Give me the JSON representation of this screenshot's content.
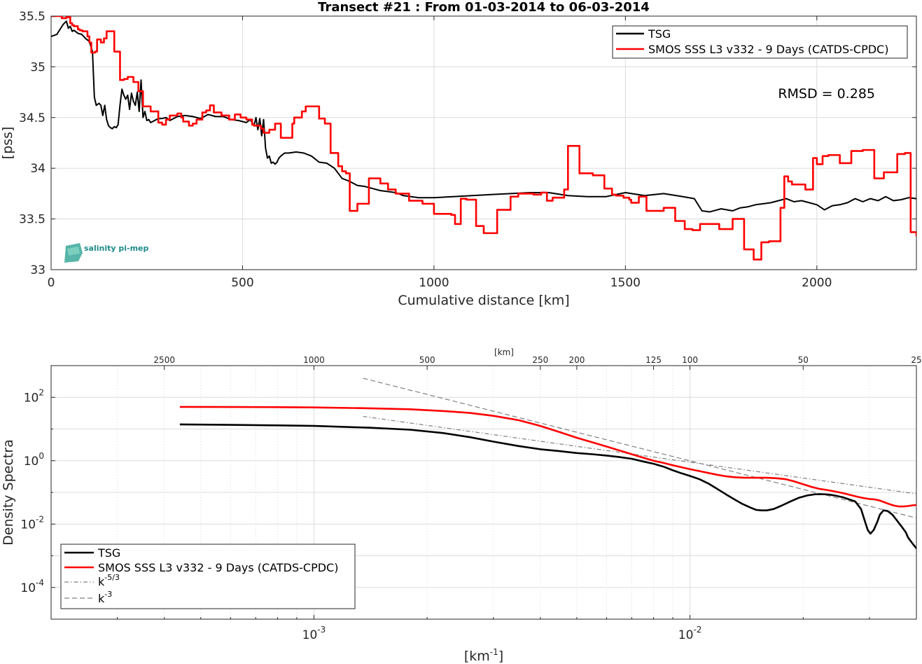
{
  "chart_data": [
    {
      "type": "line",
      "title": "Transect #21 : From 01-03-2014 to 06-03-2014",
      "xlabel": "Cumulative distance [km]",
      "ylabel": "[pss]",
      "xlim": [
        0,
        2260
      ],
      "ylim": [
        33,
        35.5
      ],
      "xticks": [
        "0",
        "500",
        "1000",
        "1500",
        "2000"
      ],
      "yticks": [
        "33",
        "33.5",
        "34",
        "34.5",
        "35",
        "35.5"
      ],
      "grid": true,
      "legend_position": "top-right",
      "annotation": "RMSD = 0.285",
      "logo": "salinity pi-mep",
      "series": [
        {
          "name": "TSG",
          "color": "#000000",
          "style": "line",
          "x": [
            0,
            15,
            25,
            32,
            40,
            45,
            50,
            55,
            60,
            70,
            80,
            90,
            100,
            108,
            113,
            118,
            125,
            130,
            135,
            140,
            145,
            150,
            155,
            160,
            165,
            170,
            175,
            180,
            185,
            190,
            195,
            200,
            205,
            210,
            215,
            220,
            225,
            230,
            235,
            240,
            245,
            250,
            255,
            260,
            265,
            270,
            280,
            290,
            300,
            310,
            330,
            350,
            370,
            390,
            410,
            430,
            450,
            470,
            490,
            510,
            520,
            530,
            535,
            540,
            545,
            550,
            555,
            560,
            565,
            570,
            575,
            580,
            585,
            590,
            595,
            600,
            610,
            620,
            640,
            660,
            680,
            700,
            720,
            740,
            760,
            780,
            800,
            820,
            840,
            860,
            880,
            900,
            920,
            940,
            960,
            980,
            1000,
            1050,
            1100,
            1150,
            1200,
            1250,
            1300,
            1350,
            1400,
            1450,
            1500,
            1550,
            1600,
            1650,
            1680,
            1700,
            1720,
            1750,
            1780,
            1800,
            1820,
            1840,
            1860,
            1880,
            1900,
            1920,
            1940,
            1960,
            1980,
            2000,
            2020,
            2040,
            2060,
            2080,
            2100,
            2120,
            2140,
            2160,
            2180,
            2200,
            2220,
            2240,
            2260
          ],
          "y": [
            35.3,
            35.32,
            35.38,
            35.42,
            35.45,
            35.38,
            35.4,
            35.35,
            35.36,
            35.33,
            35.32,
            35.28,
            35.25,
            35.15,
            34.7,
            34.62,
            34.64,
            34.62,
            34.52,
            34.62,
            34.48,
            34.42,
            34.4,
            34.39,
            34.41,
            34.4,
            34.43,
            34.62,
            34.78,
            34.72,
            34.68,
            34.72,
            34.58,
            34.74,
            34.66,
            34.62,
            34.75,
            34.56,
            34.87,
            34.5,
            34.56,
            34.47,
            34.48,
            34.45,
            34.46,
            34.47,
            34.49,
            34.49,
            34.5,
            34.47,
            34.51,
            34.52,
            34.51,
            34.49,
            34.53,
            34.51,
            34.51,
            34.48,
            34.47,
            34.45,
            34.48,
            34.42,
            34.5,
            34.38,
            34.49,
            34.32,
            34.48,
            34.2,
            34.1,
            34.12,
            34.05,
            34.06,
            34.04,
            34.06,
            34.1,
            34.12,
            34.15,
            34.15,
            34.16,
            34.15,
            34.12,
            34.06,
            34.05,
            34.0,
            33.9,
            33.87,
            33.83,
            33.82,
            33.8,
            33.78,
            33.77,
            33.76,
            33.73,
            33.72,
            33.71,
            33.71,
            33.71,
            33.72,
            33.73,
            33.74,
            33.75,
            33.76,
            33.76,
            33.73,
            33.72,
            33.72,
            33.76,
            33.73,
            33.75,
            33.72,
            33.7,
            33.58,
            33.57,
            33.6,
            33.58,
            33.61,
            33.62,
            33.64,
            33.65,
            33.66,
            33.68,
            33.7,
            33.67,
            33.68,
            33.66,
            33.64,
            33.59,
            33.63,
            33.64,
            33.66,
            33.7,
            33.67,
            33.7,
            33.68,
            33.72,
            33.68,
            33.69,
            33.71,
            33.7
          ]
        },
        {
          "name": "SMOS SSS L3 v332 - 9 Days (CATDS-CPDC)",
          "color": "#ff0000",
          "style": "step",
          "x": [
            0,
            28,
            40,
            45,
            50,
            55,
            60,
            70,
            75,
            82,
            95,
            100,
            105,
            115,
            120,
            130,
            138,
            145,
            165,
            180,
            190,
            200,
            215,
            228,
            240,
            260,
            280,
            290,
            300,
            310,
            330,
            340,
            345,
            360,
            370,
            380,
            395,
            405,
            415,
            425,
            445,
            465,
            480,
            495,
            510,
            525,
            530,
            548,
            555,
            570,
            585,
            600,
            625,
            630,
            635,
            655,
            665,
            685,
            700,
            715,
            730,
            750,
            760,
            770,
            780,
            800,
            830,
            860,
            880,
            900,
            935,
            970,
            1000,
            1045,
            1055,
            1070,
            1085,
            1110,
            1130,
            1165,
            1200,
            1220,
            1260,
            1280,
            1295,
            1310,
            1340,
            1350,
            1380,
            1415,
            1445,
            1465,
            1475,
            1495,
            1510,
            1515,
            1535,
            1555,
            1600,
            1630,
            1655,
            1675,
            1695,
            1725,
            1745,
            1780,
            1810,
            1835,
            1855,
            1875,
            1905,
            1915,
            1925,
            1935,
            1970,
            1990,
            2000,
            2015,
            2030,
            2060,
            2090,
            2120,
            2150,
            2175,
            2210,
            2230,
            2245,
            2260
          ],
          "y": [
            35.5,
            35.48,
            35.49,
            35.49,
            35.43,
            35.41,
            35.4,
            35.37,
            35.36,
            35.35,
            35.3,
            35.24,
            35.14,
            35.15,
            35.27,
            35.24,
            35.28,
            35.35,
            35.15,
            34.87,
            34.88,
            34.9,
            34.85,
            34.76,
            34.61,
            34.56,
            34.45,
            34.43,
            34.48,
            34.52,
            34.54,
            34.5,
            34.46,
            34.42,
            34.44,
            34.48,
            34.55,
            34.57,
            34.62,
            34.55,
            34.52,
            34.48,
            34.53,
            34.5,
            34.48,
            34.43,
            34.42,
            34.39,
            34.35,
            34.38,
            34.44,
            34.3,
            34.3,
            34.44,
            34.5,
            34.56,
            34.61,
            34.61,
            34.49,
            34.44,
            34.15,
            34.02,
            33.97,
            33.95,
            33.58,
            33.65,
            33.9,
            33.85,
            33.79,
            33.75,
            33.68,
            33.65,
            33.55,
            33.54,
            33.45,
            33.7,
            33.69,
            33.43,
            33.36,
            33.59,
            33.72,
            33.75,
            33.74,
            33.76,
            33.68,
            33.71,
            33.79,
            34.22,
            33.95,
            33.93,
            33.8,
            33.74,
            33.73,
            33.71,
            33.69,
            33.66,
            33.72,
            33.58,
            33.61,
            33.48,
            33.4,
            33.39,
            33.45,
            33.45,
            33.4,
            33.5,
            33.2,
            33.1,
            33.27,
            33.28,
            33.61,
            33.92,
            33.87,
            33.84,
            33.79,
            34.1,
            34.04,
            34.12,
            34.13,
            34.05,
            34.17,
            34.18,
            33.9,
            33.96,
            34.14,
            34.15,
            33.37,
            33.33
          ]
        }
      ]
    },
    {
      "type": "line",
      "xlabel": "[km-1]",
      "ylabel": "Density Spectra",
      "top_axis_label": "[km]",
      "x_scale": "log",
      "y_scale": "log",
      "xlim": [
        0.0002,
        0.04
      ],
      "ylim": [
        1e-05,
        1000
      ],
      "xticks_bottom": [
        "10-3",
        "10-2"
      ],
      "xticks_top_km": [
        2500,
        1000,
        500,
        250,
        200,
        125,
        100,
        50,
        25
      ],
      "yticks": [
        "10-4",
        "10-2",
        "100",
        "102"
      ],
      "grid": true,
      "legend_position": "bottom-left",
      "series": [
        {
          "name": "TSG",
          "color": "#000000",
          "style": "solid",
          "x": [
            0.00044,
            0.0006,
            0.0008,
            0.001,
            0.0014,
            0.0018,
            0.0022,
            0.0026,
            0.003,
            0.0035,
            0.004,
            0.0045,
            0.005,
            0.0055,
            0.006,
            0.0065,
            0.007,
            0.0075,
            0.008,
            0.0085,
            0.009,
            0.0095,
            0.01,
            0.0106,
            0.0112,
            0.0118,
            0.0125,
            0.0132,
            0.0138,
            0.0145,
            0.015,
            0.0155,
            0.016,
            0.0167,
            0.0175,
            0.0185,
            0.0195,
            0.0205,
            0.0215,
            0.0225,
            0.0235,
            0.0245,
            0.0255,
            0.0265,
            0.0275,
            0.0285,
            0.0292,
            0.0297,
            0.0302,
            0.0308,
            0.0315,
            0.032,
            0.0327,
            0.0335,
            0.0345,
            0.0355,
            0.0365,
            0.0375,
            0.038,
            0.039,
            0.04
          ],
          "y": [
            14,
            13.5,
            13,
            12.5,
            11,
            9.5,
            7.5,
            5.5,
            4,
            2.9,
            2.3,
            2,
            1.75,
            1.6,
            1.45,
            1.3,
            1.15,
            0.95,
            0.8,
            0.65,
            0.5,
            0.4,
            0.33,
            0.26,
            0.19,
            0.13,
            0.085,
            0.058,
            0.043,
            0.033,
            0.028,
            0.027,
            0.027,
            0.03,
            0.038,
            0.052,
            0.068,
            0.08,
            0.087,
            0.088,
            0.085,
            0.078,
            0.07,
            0.06,
            0.052,
            0.03,
            0.012,
            0.0065,
            0.005,
            0.0065,
            0.012,
            0.02,
            0.027,
            0.026,
            0.02,
            0.013,
            0.0085,
            0.0055,
            0.0038,
            0.0025,
            0.0017
          ]
        },
        {
          "name": "SMOS SSS L3 v332 - 9 Days (CATDS-CPDC)",
          "color": "#ff0000",
          "style": "solid",
          "x": [
            0.00044,
            0.0006,
            0.0008,
            0.001,
            0.0014,
            0.0018,
            0.0022,
            0.0026,
            0.003,
            0.0035,
            0.004,
            0.0045,
            0.005,
            0.0055,
            0.006,
            0.0065,
            0.007,
            0.0075,
            0.008,
            0.0085,
            0.009,
            0.0095,
            0.01,
            0.0106,
            0.0112,
            0.0118,
            0.0125,
            0.0132,
            0.014,
            0.015,
            0.016,
            0.017,
            0.018,
            0.019,
            0.02,
            0.021,
            0.022,
            0.023,
            0.024,
            0.025,
            0.026,
            0.027,
            0.028,
            0.029,
            0.03,
            0.031,
            0.032,
            0.033,
            0.034,
            0.035,
            0.036,
            0.037,
            0.038,
            0.039,
            0.04
          ],
          "y": [
            50,
            49.5,
            49,
            48,
            45,
            42,
            37,
            32,
            26,
            19,
            12.5,
            8,
            5.3,
            3.8,
            2.8,
            2.1,
            1.6,
            1.25,
            1,
            0.85,
            0.72,
            0.62,
            0.54,
            0.47,
            0.41,
            0.36,
            0.32,
            0.3,
            0.29,
            0.29,
            0.29,
            0.28,
            0.26,
            0.22,
            0.18,
            0.15,
            0.13,
            0.12,
            0.11,
            0.1,
            0.09,
            0.08,
            0.072,
            0.066,
            0.062,
            0.06,
            0.055,
            0.048,
            0.042,
            0.038,
            0.036,
            0.036,
            0.037,
            0.039,
            0.04
          ]
        },
        {
          "name": "k-5/3",
          "color": "#808080",
          "style": "dashdot",
          "x": [
            0.00135,
            0.04
          ],
          "y": [
            25,
            0.09
          ]
        },
        {
          "name": "k-3",
          "color": "#808080",
          "style": "dashed",
          "x": [
            0.00135,
            0.04
          ],
          "y": [
            400,
            0.0155
          ]
        }
      ]
    }
  ]
}
